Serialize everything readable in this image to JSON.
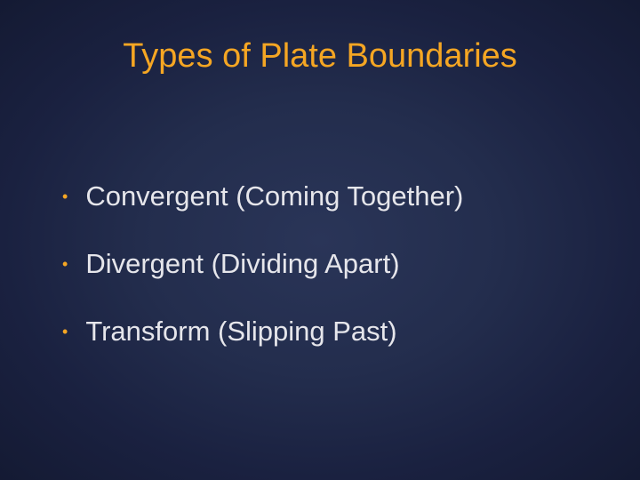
{
  "slide": {
    "title": "Types of Plate Boundaries",
    "title_color": "#f5a623",
    "title_fontsize": 38,
    "background_gradient": {
      "center": "#2a3558",
      "mid": "#232d4d",
      "outer": "#1a2140",
      "edge": "#141a33"
    },
    "bullet_color": "#f5a623",
    "text_color": "#e6e6eb",
    "text_fontsize": 31,
    "items": [
      {
        "text": "Convergent (Coming Together)"
      },
      {
        "text": "Divergent (Dividing Apart)"
      },
      {
        "text": "Transform (Slipping Past)"
      }
    ]
  }
}
